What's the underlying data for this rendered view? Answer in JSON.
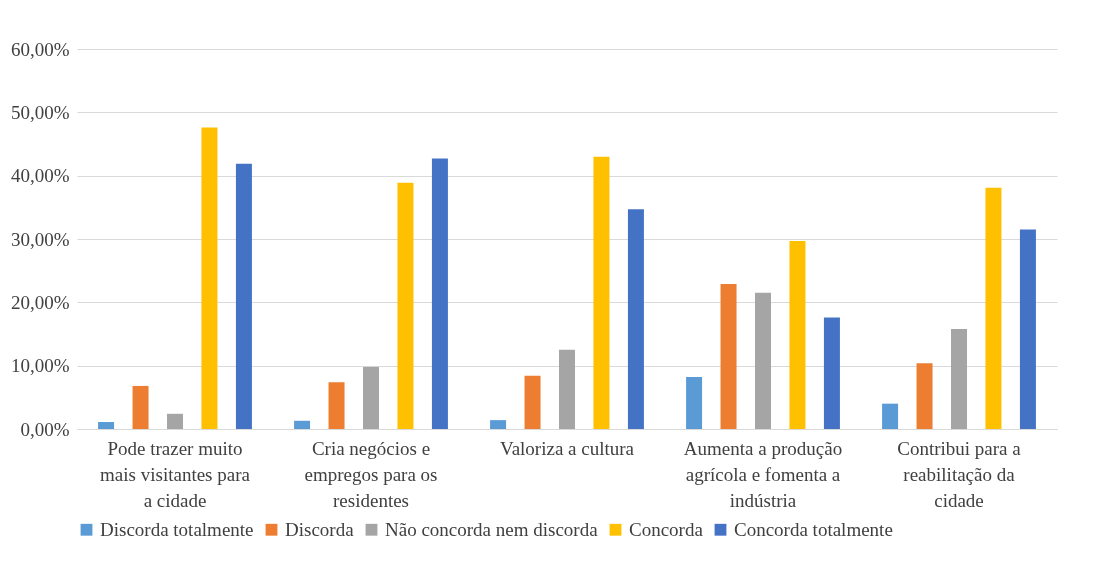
{
  "chart_data": {
    "type": "bar",
    "categories": [
      "Pode trazer muito mais visitantes para a cidade",
      "Cria negócios e empregos para os residentes",
      "Valoriza a cultura",
      "Aumenta a produção agrícola e fomenta a indústria",
      "Contribui para a reabilitação da cidade"
    ],
    "series": [
      {
        "name": "Discorda totalmente",
        "color": "#5b9bd5",
        "values": [
          1.1,
          1.3,
          1.4,
          8.2,
          4.0
        ]
      },
      {
        "name": "Discorda",
        "color": "#ed7d31",
        "values": [
          6.8,
          7.4,
          8.4,
          22.9,
          10.4
        ]
      },
      {
        "name": "Não concorda nem discorda",
        "color": "#a5a5a5",
        "values": [
          2.4,
          9.8,
          12.5,
          21.5,
          15.8
        ]
      },
      {
        "name": "Concorda",
        "color": "#ffc000",
        "values": [
          47.6,
          38.9,
          43.0,
          29.7,
          38.1
        ]
      },
      {
        "name": "Concorda totalmente",
        "color": "#4472c4",
        "values": [
          41.9,
          42.7,
          34.7,
          17.6,
          31.5
        ]
      }
    ],
    "ylim": [
      0,
      60
    ],
    "yticks": [
      {
        "value": 0,
        "label": "0,00%"
      },
      {
        "value": 10,
        "label": "10,00%"
      },
      {
        "value": 20,
        "label": "20,00%"
      },
      {
        "value": 30,
        "label": "30,00%"
      },
      {
        "value": 40,
        "label": "40,00%"
      },
      {
        "value": 50,
        "label": "50,00%"
      },
      {
        "value": 60,
        "label": "60,00%"
      }
    ],
    "grid": "y",
    "legend": "bottom"
  }
}
